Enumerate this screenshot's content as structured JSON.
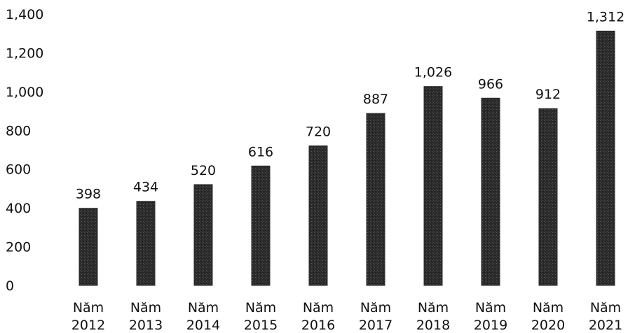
{
  "chart_data": {
    "type": "bar",
    "categories": [
      "Năm 2012",
      "Năm 2013",
      "Năm 2014",
      "Năm 2015",
      "Năm 2016",
      "Năm 2017",
      "Năm 2018",
      "Năm 2019",
      "Năm 2020",
      "Năm 2021"
    ],
    "category_lines": [
      [
        "Năm",
        "2012"
      ],
      [
        "Năm",
        "2013"
      ],
      [
        "Năm",
        "2014"
      ],
      [
        "Năm",
        "2015"
      ],
      [
        "Năm",
        "2016"
      ],
      [
        "Năm",
        "2017"
      ],
      [
        "Năm",
        "2018"
      ],
      [
        "Năm",
        "2019"
      ],
      [
        "Năm",
        "2020"
      ],
      [
        "Năm",
        "2021"
      ]
    ],
    "values": [
      398,
      434,
      520,
      616,
      720,
      887,
      1026,
      966,
      912,
      1312
    ],
    "value_labels": [
      "398",
      "434",
      "520",
      "616",
      "720",
      "887",
      "1,026",
      "966",
      "912",
      "1,312"
    ],
    "yticks": [
      0,
      200,
      400,
      600,
      800,
      1000,
      1200,
      1400
    ],
    "ytick_labels": [
      "0",
      "200",
      "400",
      "600",
      "800",
      "1,000",
      "1,200",
      "1,400"
    ],
    "ylim": [
      0,
      1400
    ],
    "title": "",
    "xlabel": "",
    "ylabel": "",
    "grid": false,
    "legend": "none",
    "bar_color": "#2b2b2b"
  }
}
